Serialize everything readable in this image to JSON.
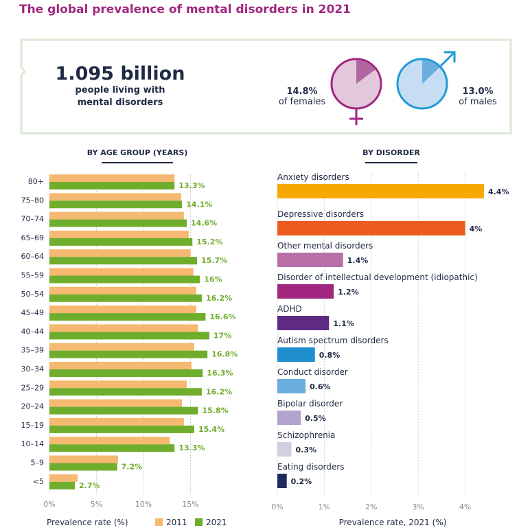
{
  "title": "The global prevalence of mental disorders in 2021",
  "summary": {
    "big_number": "1.095 billion",
    "sub_line1": "people living with",
    "sub_line2": "mental disorders",
    "female_pct": "14.8%",
    "female_label": "of females",
    "male_pct": "13.0%",
    "male_label": "of males",
    "female_value": 14.8,
    "male_value": 13.0,
    "colors": {
      "female_fill": "#e3c8dc",
      "female_slice": "#b0669f",
      "female_stroke": "#a0267f",
      "male_fill": "#c7ddf3",
      "male_slice": "#6aaee0",
      "male_stroke": "#1f9ad6",
      "box_border": "#dbe9d4"
    }
  },
  "chart_data": [
    {
      "type": "bar",
      "title": "BY AGE GROUP (YEARS)",
      "orientation": "horizontal",
      "categories": [
        "80+",
        "75–80",
        "70–74",
        "65–69",
        "60–64",
        "55–59",
        "50–54",
        "45–49",
        "40–44",
        "35–39",
        "30–34",
        "25–29",
        "20–24",
        "15–19",
        "10–14",
        "5–9",
        "<5"
      ],
      "series": [
        {
          "name": "2011",
          "color": "#f5b971",
          "values": [
            13.3,
            14.0,
            14.3,
            14.8,
            15.0,
            15.3,
            15.6,
            15.6,
            15.8,
            15.4,
            15.1,
            14.6,
            14.1,
            14.3,
            12.8,
            7.3,
            3.0
          ]
        },
        {
          "name": "2021",
          "color": "#6fad2c",
          "values": [
            13.3,
            14.1,
            14.6,
            15.2,
            15.7,
            16,
            16.2,
            16.6,
            17,
            16.8,
            16.3,
            16.2,
            15.8,
            15.4,
            13.3,
            7.2,
            2.7
          ]
        }
      ],
      "data_labels": [
        "13.3%",
        "14.1%",
        "14.6%",
        "15.2%",
        "15.7%",
        "16%",
        "16.2%",
        "16.6%",
        "17%",
        "16.8%",
        "16.3%",
        "16.2%",
        "15.8%",
        "15.4%",
        "13.3%",
        "7.2%",
        "2.7%"
      ],
      "xlim": [
        0,
        20
      ],
      "xticks": [
        0,
        5,
        10,
        15
      ],
      "xtick_labels": [
        "0%",
        "5%",
        "10%",
        "15%"
      ],
      "xlabel": "Prevalence rate (%)",
      "legend": [
        "2011",
        "2021"
      ],
      "legend_position": "bottom",
      "grid": true
    },
    {
      "type": "bar",
      "title": "BY DISORDER",
      "orientation": "horizontal",
      "categories": [
        "Anxiety disorders",
        "Depressive disorders",
        "Other mental disorders",
        "Disorder of intellectual development (idiopathic)",
        "ADHD",
        "Autism spectrum disorders",
        "Conduct disorder",
        "Bipolar disorder",
        "Schizophrenia",
        "Eating disorders"
      ],
      "values": [
        4.4,
        4.0,
        1.4,
        1.2,
        1.1,
        0.8,
        0.6,
        0.5,
        0.3,
        0.2
      ],
      "data_labels": [
        "4.4%",
        "4%",
        "1.4%",
        "1.2%",
        "1.1%",
        "0.8%",
        "0.6%",
        "0.5%",
        "0.3%",
        "0.2%"
      ],
      "colors": [
        "#f5a800",
        "#eb5c1e",
        "#b86fa8",
        "#a0267f",
        "#5e2a84",
        "#1f8fcf",
        "#6aaee0",
        "#b3a3cf",
        "#d3cfe2",
        "#1f2a5c"
      ],
      "xlim": [
        0,
        5
      ],
      "xticks": [
        0,
        1,
        2,
        3,
        4
      ],
      "xtick_labels": [
        "0%",
        "1%",
        "2%",
        "3%",
        "4%"
      ],
      "xlabel": "Prevalence rate, 2021 (%)",
      "grid": true
    }
  ]
}
